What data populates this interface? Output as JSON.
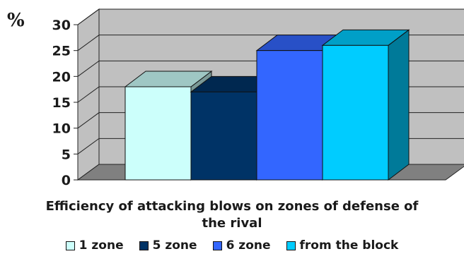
{
  "chart_data": {
    "type": "bar",
    "title": "Efficiency of attacking blows on zones of defense of the rival",
    "title_lines": [
      "Efficiency of attacking blows on zones of defense of",
      "the rival"
    ],
    "ylabel": "%",
    "xlabel": "",
    "ylim": [
      0,
      30
    ],
    "yticks": [
      0,
      5,
      10,
      15,
      20,
      25,
      30
    ],
    "grid": true,
    "three_d": true,
    "legend_position": "bottom",
    "series": [
      {
        "name": "1 zone",
        "value": 18,
        "color": "#ccfffb"
      },
      {
        "name": "5 zone",
        "value": 17,
        "color": "#003366"
      },
      {
        "name": "6 zone",
        "value": 25,
        "color": "#3366ff"
      },
      {
        "name": "from the block",
        "value": 26,
        "color": "#00ccff"
      }
    ],
    "wall_color": "#c0c0c0",
    "floor_color": "#808080"
  }
}
